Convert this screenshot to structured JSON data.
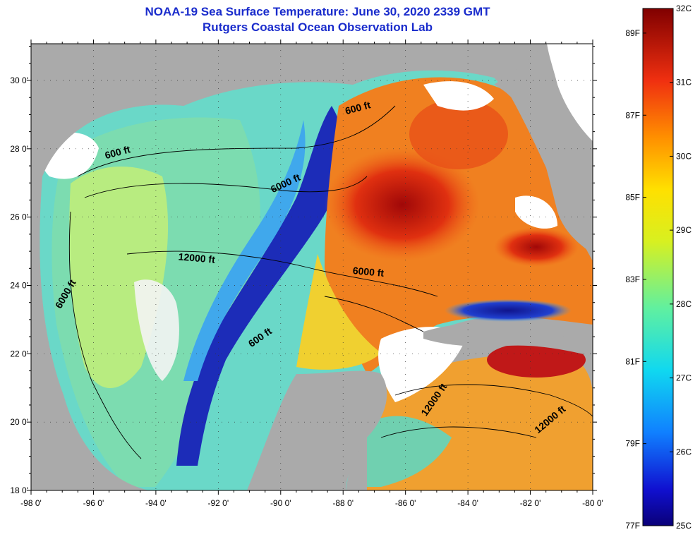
{
  "header": {
    "title_line1": "NOAA-19 Sea Surface Temperature:  June 30, 2020 2339 GMT",
    "title_line2": "Rutgers Coastal Ocean Observation Lab"
  },
  "map": {
    "lon_ticks": [
      "-98 0'",
      "-96 0'",
      "-94 0'",
      "-92 0'",
      "-90 0'",
      "-88 0'",
      "-86 0'",
      "-84 0'",
      "-82 0'",
      "-80 0'"
    ],
    "lat_ticks": [
      "30 0'",
      "28 0'",
      "26 0'",
      "24 0'",
      "22 0'",
      "20 0'",
      "18 0'"
    ],
    "contour_labels": [
      {
        "text": "600 ft",
        "lon": -95.2,
        "lat": 27.8
      },
      {
        "text": "6000 ft",
        "lon": -89.8,
        "lat": 26.9
      },
      {
        "text": "600 ft",
        "lon": -87.5,
        "lat": 29.1
      },
      {
        "text": "12000 ft",
        "lon": -92.7,
        "lat": 24.7
      },
      {
        "text": "6000 ft",
        "lon": -87.2,
        "lat": 24.3
      },
      {
        "text": "6000 ft",
        "lon": -96.8,
        "lat": 23.7
      },
      {
        "text": "600 ft",
        "lon": -90.6,
        "lat": 22.4
      },
      {
        "text": "12000 ft",
        "lon": -85.0,
        "lat": 20.6
      },
      {
        "text": "12000 ft",
        "lon": -81.3,
        "lat": 20.0
      }
    ],
    "colors": {
      "land": "#aaaaaa",
      "cloud": "#ffffff",
      "sst_cold": "#1a1aa8",
      "sst_cool": "#40c8e0",
      "sst_mid": "#a8e070",
      "sst_warm": "#f0a020",
      "sst_hot": "#a01010"
    }
  },
  "colorbar": {
    "fahrenheit_labels": [
      "89F",
      "87F",
      "85F",
      "83F",
      "81F",
      "79F",
      "77F"
    ],
    "celsius_labels": [
      "32C",
      "31C",
      "30C",
      "29C",
      "28C",
      "27C",
      "26C",
      "25C"
    ],
    "c_min": 25,
    "c_max": 32
  }
}
